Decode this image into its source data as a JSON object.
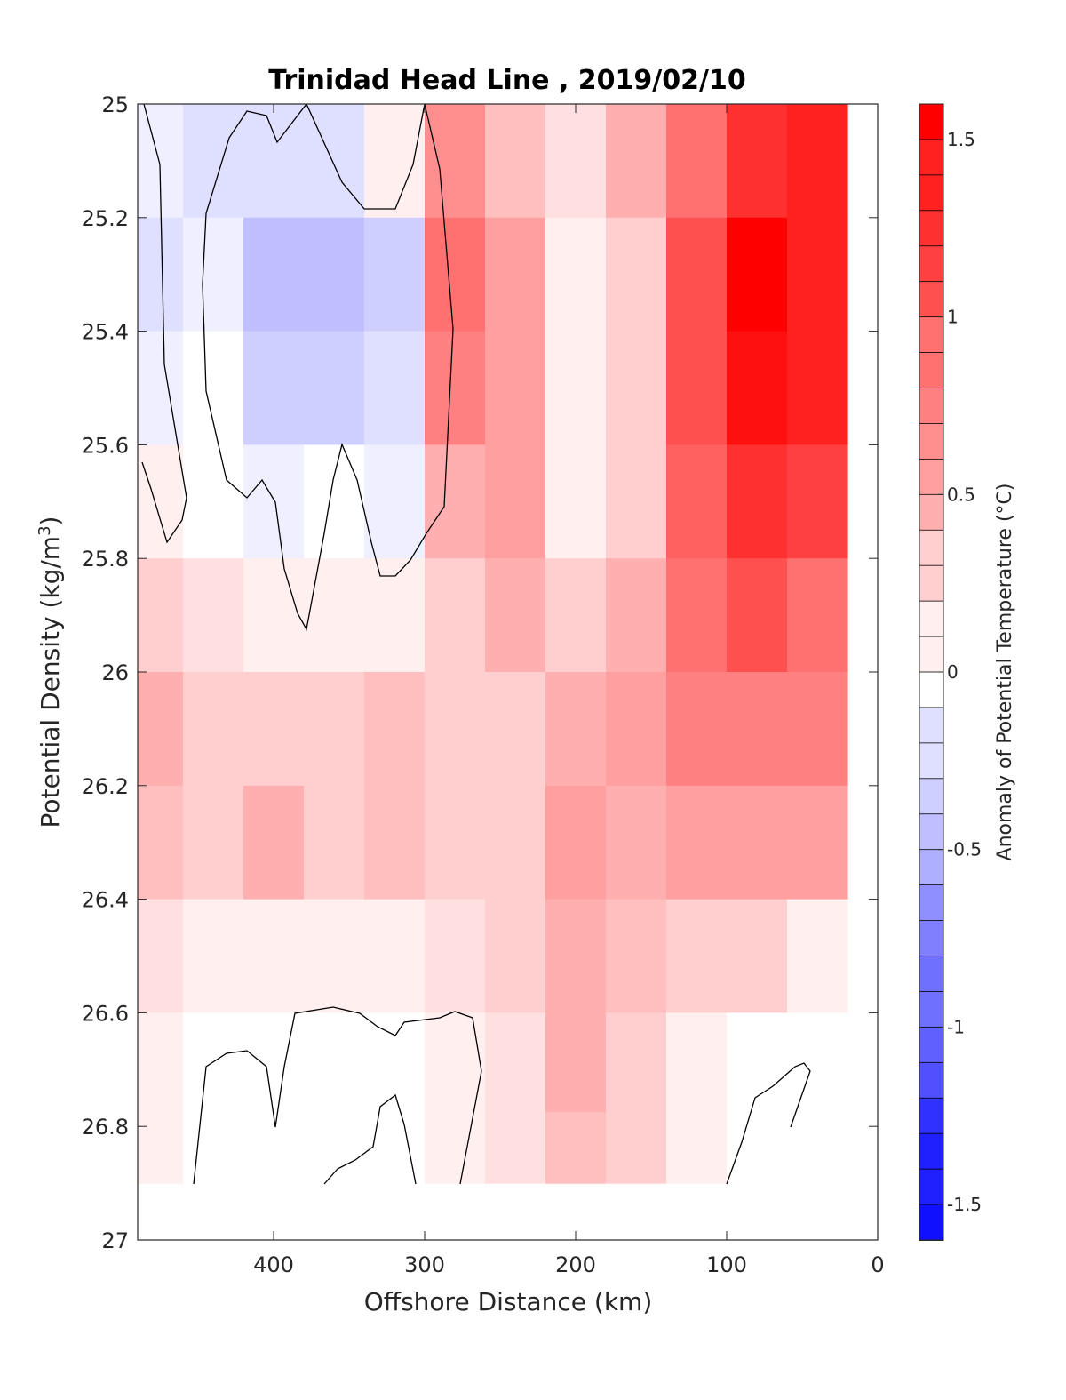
{
  "chart_data": {
    "type": "heatmap",
    "title": "Trinidad Head Line , 2019/02/10",
    "xlabel": "Offshore Distance (km)",
    "ylabel": "Potential Density (kg/m",
    "ylabel_superscript": "3",
    "ylabel_close": ")",
    "colorbar_label": "Anomaly of Potential Temperature (°C)",
    "xlim": [
      490,
      0
    ],
    "ylim": [
      25,
      27
    ],
    "x_reversed": true,
    "y_reversed": true,
    "xticks": [
      400,
      300,
      200,
      100,
      0
    ],
    "xtick_labels": [
      "400",
      "300",
      "200",
      "100",
      "0"
    ],
    "yticks": [
      25,
      25.2,
      25.4,
      25.6,
      25.8,
      26,
      26.2,
      26.4,
      26.6,
      26.8,
      27
    ],
    "ytick_labels": [
      "25",
      "25.2",
      "25.4",
      "25.6",
      "25.8",
      "26",
      "26.2",
      "26.4",
      "26.6",
      "26.8",
      "27"
    ],
    "colorbar_range": [
      -1.6,
      1.6
    ],
    "colorbar_ticks": [
      1.5,
      1,
      0.5,
      0,
      -0.5,
      -1,
      -1.5
    ],
    "colorbar_tick_labels": [
      "1.5",
      "1",
      "0.5",
      "0",
      "-0.5",
      "-1",
      "-1.5"
    ],
    "colorbar_step": 0.1,
    "colormap": "blue-white-red",
    "x": [
      480,
      440,
      400,
      360,
      320,
      280,
      240,
      200,
      160,
      120,
      80,
      40
    ],
    "y": [
      25.1,
      25.3,
      25.5,
      25.7,
      25.9,
      26.1,
      26.3,
      26.5,
      26.7,
      26.85
    ],
    "z": [
      [
        -0.1,
        -0.2,
        -0.25,
        -0.2,
        0.05,
        0.7,
        0.4,
        0.2,
        0.45,
        0.9,
        1.25,
        1.35
      ],
      [
        -0.25,
        -0.1,
        -0.45,
        -0.45,
        -0.3,
        0.85,
        0.55,
        0.1,
        0.3,
        1.1,
        1.55,
        1.4
      ],
      [
        -0.15,
        0.0,
        -0.35,
        -0.3,
        -0.25,
        0.8,
        0.55,
        0.1,
        0.3,
        1.1,
        1.5,
        1.35
      ],
      [
        0.05,
        0.0,
        -0.15,
        -0.05,
        -0.1,
        0.5,
        0.6,
        0.15,
        0.35,
        1.0,
        1.3,
        1.2
      ],
      [
        0.3,
        0.2,
        0.1,
        0.05,
        0.05,
        0.35,
        0.45,
        0.3,
        0.45,
        0.85,
        1.05,
        0.95
      ],
      [
        0.45,
        0.35,
        0.35,
        0.3,
        0.4,
        0.35,
        0.35,
        0.5,
        0.55,
        0.75,
        0.8,
        0.8
      ],
      [
        0.4,
        0.35,
        0.45,
        0.35,
        0.4,
        0.3,
        0.25,
        0.6,
        0.5,
        0.6,
        0.6,
        0.55
      ],
      [
        0.2,
        0.1,
        0.1,
        0.05,
        0.1,
        0.2,
        0.3,
        0.45,
        0.4,
        0.35,
        0.25,
        0.15
      ],
      [
        0.05,
        0.0,
        -0.05,
        -0.05,
        -0.05,
        0.05,
        0.2,
        0.45,
        0.3,
        0.15,
        0.0,
        0.0
      ],
      [
        0.05,
        -0.05,
        0.0,
        -0.05,
        0.0,
        0.05,
        0.2,
        0.4,
        0.3,
        0.15,
        0.0,
        0.0
      ]
    ],
    "no_data_regions": [
      "deepest band 26.9–27 at all distances",
      "nearshore column 0–30 km",
      "top-right gaps near 210 km and 80–130 km"
    ]
  }
}
